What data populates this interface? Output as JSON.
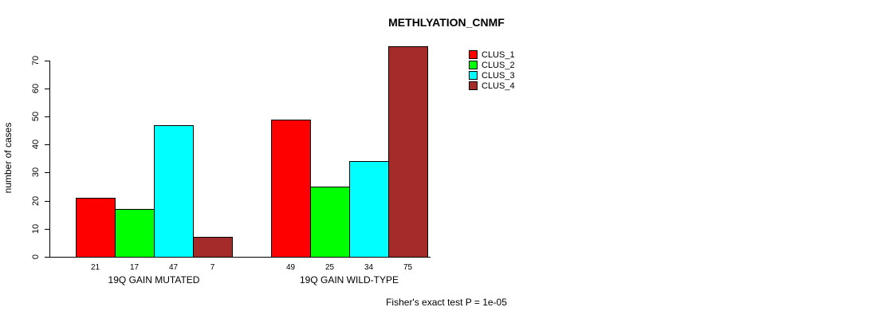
{
  "title": "METHLYATION_CNMF",
  "footer": "Fisher's exact test P = 1e-05",
  "chart_data": {
    "type": "bar",
    "title": "METHLYATION_CNMF",
    "xlabel": "",
    "ylabel": "number of cases",
    "ylim": [
      0,
      75
    ],
    "yticks": [
      0,
      10,
      20,
      30,
      40,
      50,
      60,
      70
    ],
    "grid": false,
    "legend_position": "top-right",
    "categories": [
      "19Q GAIN MUTATED",
      "19Q GAIN WILD-TYPE"
    ],
    "series": [
      {
        "name": "CLUS_1",
        "color": "#ff0000",
        "values": [
          21,
          49
        ]
      },
      {
        "name": "CLUS_2",
        "color": "#00ff00",
        "values": [
          17,
          25
        ]
      },
      {
        "name": "CLUS_3",
        "color": "#00ffff",
        "values": [
          47,
          34
        ]
      },
      {
        "name": "CLUS_4",
        "color": "#a52a2a",
        "values": [
          7,
          75
        ]
      }
    ],
    "groups": [
      {
        "label": "19Q GAIN MUTATED",
        "values": [
          21,
          17,
          47,
          7
        ]
      },
      {
        "label": "19Q GAIN WILD-TYPE",
        "values": [
          49,
          25,
          34,
          75
        ]
      }
    ],
    "bar_value_labels": [
      21,
      17,
      47,
      7,
      49,
      25,
      34,
      75
    ],
    "annotation": "Fisher's exact test P = 1e-05"
  }
}
